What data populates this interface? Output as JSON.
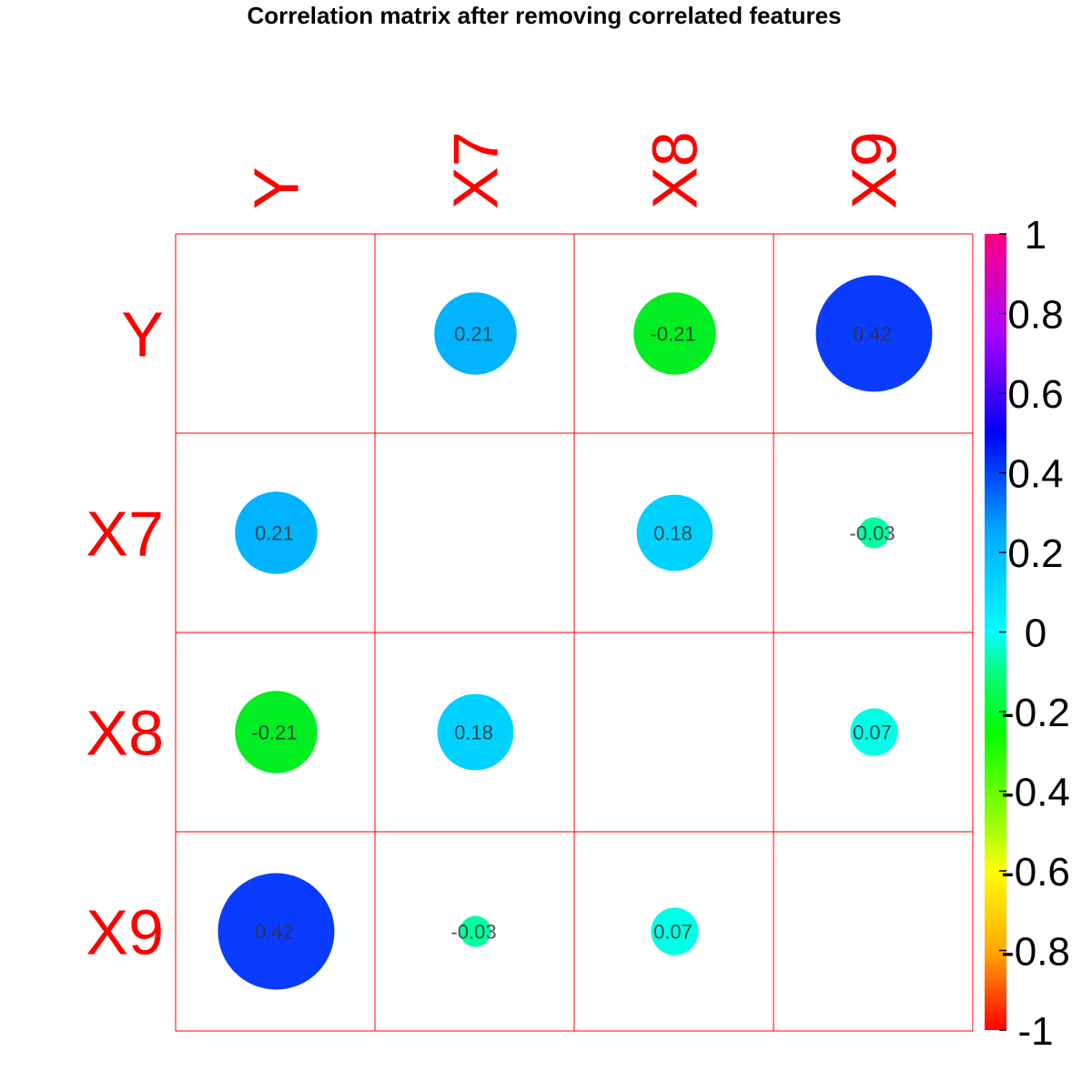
{
  "chart_data": {
    "type": "heatmap",
    "title": "Correlation matrix after removing correlated features",
    "variables": [
      "Y",
      "X7",
      "X8",
      "X9"
    ],
    "matrix": [
      [
        null,
        0.21,
        -0.21,
        0.42
      ],
      [
        0.21,
        null,
        0.18,
        -0.03
      ],
      [
        -0.21,
        0.18,
        null,
        0.07
      ],
      [
        0.42,
        -0.03,
        0.07,
        null
      ]
    ],
    "cell_labels": [
      [
        "",
        "0.21",
        "-0.21",
        "0.42"
      ],
      [
        "0.21",
        "",
        "0.18",
        "-0.03"
      ],
      [
        "-0.21",
        "0.18",
        "",
        "0.07"
      ],
      [
        "0.42",
        "-0.03",
        "0.07",
        ""
      ]
    ],
    "value_range": [
      -1,
      1
    ],
    "colorbar": {
      "ticks": [
        "1",
        "0.8",
        "0.6",
        "0.4",
        "0.2",
        "0",
        "-0.2",
        "-0.4",
        "-0.6",
        "-0.8",
        "-1"
      ],
      "tick_values": [
        1,
        0.8,
        0.6,
        0.4,
        0.2,
        0,
        -0.2,
        -0.4,
        -0.6,
        -0.8,
        -1
      ],
      "color_stops": [
        {
          "value": 1,
          "color": "#ff0080"
        },
        {
          "value": 0.75,
          "color": "#aa00ff"
        },
        {
          "value": 0.5,
          "color": "#0000ff"
        },
        {
          "value": 0.25,
          "color": "#00aaff"
        },
        {
          "value": 0,
          "color": "#00ffff"
        },
        {
          "value": -0.1,
          "color": "#00ff80"
        },
        {
          "value": -0.25,
          "color": "#00ff00"
        },
        {
          "value": -0.5,
          "color": "#aaff00"
        },
        {
          "value": -0.6,
          "color": "#ffff00"
        },
        {
          "value": -0.8,
          "color": "#ffaa00"
        },
        {
          "value": -1,
          "color": "#ff0000"
        }
      ]
    },
    "cell_colors": [
      [
        null,
        "#00b4ff",
        "#00ee22",
        "#0a3cff"
      ],
      [
        null,
        null,
        "#00d2ff",
        "#00ff9f"
      ],
      [
        null,
        null,
        null,
        "#00ffe6"
      ],
      [
        null,
        null,
        null,
        null
      ]
    ],
    "grid_color": "#ff0000",
    "label_color": "#ff0000"
  }
}
